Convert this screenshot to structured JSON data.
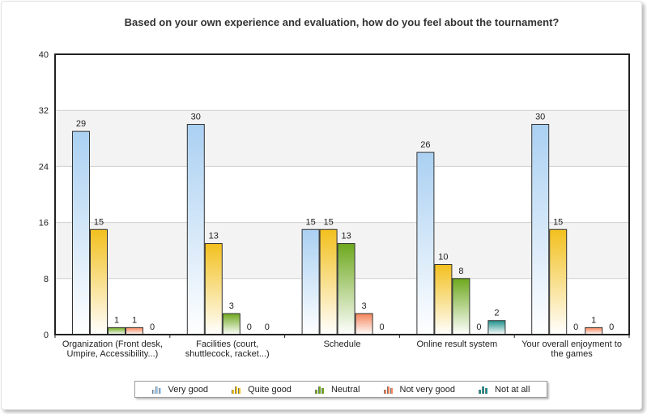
{
  "chart_data": {
    "type": "bar",
    "title": "Based on your own experience and evaluation, how do you feel about the tournament?",
    "xlabel": "",
    "ylabel": "",
    "ylim": [
      0,
      40
    ],
    "yticks": [
      0,
      8,
      16,
      24,
      32,
      40
    ],
    "grid": true,
    "legend_position": "bottom",
    "categories": [
      [
        "Organization (Front desk,",
        "Umpire, Accessibility...)"
      ],
      [
        "Facilities (court,",
        "shuttlecock, racket...)"
      ],
      [
        "Schedule"
      ],
      [
        "Online result system"
      ],
      [
        "Your overall enjoyment to",
        "the games"
      ]
    ],
    "series": [
      {
        "name": "Very good",
        "values": [
          29,
          30,
          15,
          26,
          30
        ],
        "color": "#aad0f2"
      },
      {
        "name": "Quite good",
        "values": [
          15,
          13,
          15,
          10,
          15
        ],
        "color": "#f2c01e"
      },
      {
        "name": "Neutral",
        "values": [
          1,
          3,
          13,
          8,
          0
        ],
        "color": "#6ea81e"
      },
      {
        "name": "Not very good",
        "values": [
          1,
          0,
          3,
          0,
          1
        ],
        "color": "#f4845a"
      },
      {
        "name": "Not at all",
        "values": [
          0,
          0,
          0,
          2,
          0
        ],
        "color": "#1c8f8a"
      }
    ]
  }
}
